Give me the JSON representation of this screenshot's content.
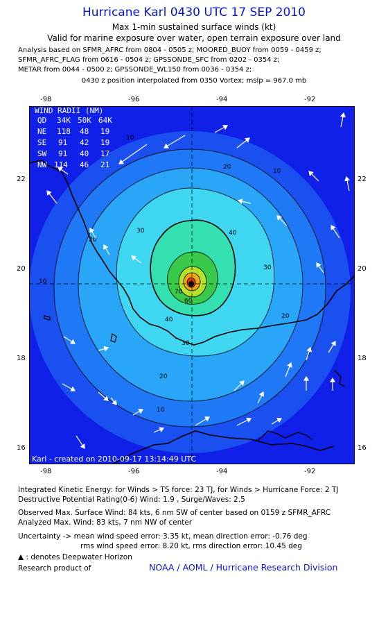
{
  "header": {
    "title": "Hurricane Karl 0430 UTC 17 SEP 2010",
    "subtitle": "Max 1-min sustained surface winds (kt)",
    "valid_line": "Valid for marine exposure over water, open terrain exposure over land",
    "analysis_lines": [
      "Analysis based on SFMR_AFRC from 0804 - 0505 z; MOORED_BUOY from 0059 - 0459 z;",
      "SFMR_AFRC_FLAG from 0616 - 0504 z; GPSSONDE_SFC from 0202 - 0354 z;",
      "METAR from 0044 - 0500 z; GPSSONDE_WL150 from 0036 - 0354 z;"
    ],
    "position_line": "0430 z position interpolated from 0350 Vortex; mslp = 967.0 mb"
  },
  "map": {
    "lon_ticks": [
      "-98",
      "-96",
      "-94",
      "-92"
    ],
    "lat_ticks": [
      "22",
      "20",
      "18",
      "16"
    ],
    "contour_labels": [
      "10",
      "20",
      "30",
      "40",
      "50",
      "60",
      "70"
    ],
    "credit": "Karl - created on 2010-09-17 13:14:49 UTC",
    "colors": {
      "ocean": "#1020e8",
      "level_10": "#1a4ff0",
      "level_20": "#1f78f5",
      "level_30": "#29a6f7",
      "level_40": "#3fd6f2",
      "level_50": "#35e0b0",
      "level_60": "#39c94a",
      "level_70": "#b6e22a",
      "level_80": "#f2a516",
      "level_83": "#e03c10",
      "coastline": "#000000",
      "arrows": "#ffffff"
    }
  },
  "wind_radii": {
    "header": [
      "QD",
      "34K",
      "50K",
      "64K"
    ],
    "title": "WIND RADII (NM)",
    "rows": [
      {
        "quadrant": "NE",
        "r34": "118",
        "r50": "48",
        "r64": "19"
      },
      {
        "quadrant": "SE",
        "r34": "91",
        "r50": "42",
        "r64": "19"
      },
      {
        "quadrant": "SW",
        "r34": "91",
        "r50": "40",
        "r64": "17"
      },
      {
        "quadrant": "NW",
        "r34": "114",
        "r50": "46",
        "r64": "21"
      }
    ]
  },
  "footer": {
    "ike_line": "Integrated Kinetic Energy:  for Winds > TS force: 23 TJ,  for Winds > Hurricane Force: 2 TJ",
    "dpr_line": "Destructive Potential Rating(0-6)   Wind: 1.9 , Surge/Waves: 2.5",
    "obs_max_line": "Observed Max. Surface Wind: 84 kts, 6 nm SW of center based on 0159 z SFMR_AFRC",
    "analyzed_max_line": "Analyzed Max. Wind: 83 kts, 7 nm NW of center",
    "uncertainty_line1": "Uncertainty -> mean wind speed error: 3.35 kt,   mean direction error:  -0.76 deg",
    "uncertainty_line2": "rms wind speed error: 8.20 kt,    rms direction error: 10.45 deg",
    "deepwater_note": ": denotes Deepwater Horizon",
    "research_label": "Research product of",
    "org_link": "NOAA / AOML / Hurricane Research Division"
  }
}
